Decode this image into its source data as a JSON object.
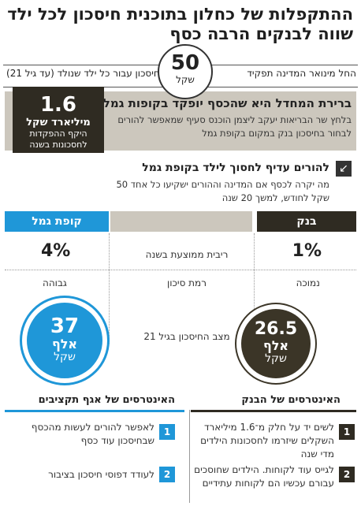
{
  "title": "ההתקפלות של כחלון בתוכנית חיסכון לכל ילד שווה לבנקים הרבה כסף",
  "subheader": {
    "right_text": "החל מינואר המדינה תפקיד",
    "left_text": "לחיסכון עבור כל ילד שנולד (עד גיל 21)",
    "amount": "50",
    "unit": "שקל"
  },
  "default_box": {
    "title": "ברירת המחדל היא שהכסף יופקד בקופות גמל",
    "text": "בלחץ שר הבריאות יעקב ליצמן הוכנס סעיף שמאפשר להורים לבחור בחיסכון בנק במקום בקופת גמל",
    "stat_value": "1.6",
    "stat_label1": "מיליארד שקל",
    "stat_label2": "היקף ההפקדות לחסכונות בשנה"
  },
  "question": {
    "arrow_icon": "arrow-down-left-icon",
    "title": "להורים עדיף לחסוך לילד בקופת גמל",
    "text": "מה יקרה לכסף אם המדינה וההורים ישקיעו כל אחד 50 שקל לחודש, למשך 20 שנה"
  },
  "comparison": {
    "bank_header": "בנק",
    "gemel_header": "קופת גמל",
    "interest_label": "ריבית ממוצעת בשנה",
    "bank_interest": "1%",
    "gemel_interest": "4%",
    "risk_label": "רמת סיכון",
    "bank_risk": "נמוכה",
    "gemel_risk": "גבוהה",
    "savings_label": "מצב החיסכון בגיל 21",
    "bank_savings": "26.5",
    "bank_savings_unit1": "אלף",
    "bank_savings_unit2": "שקל",
    "gemel_savings": "37",
    "gemel_savings_unit1": "אלף",
    "gemel_savings_unit2": "שקל"
  },
  "bank_interests": {
    "title": "האינטרסים של הבנק",
    "items": [
      {
        "num": "1",
        "text": "לשים יד על חלק מ־1.6 מיליארד השקלים שיזרמו לחסכונות הילדים מדי שנה"
      },
      {
        "num": "2",
        "text": "לגייס עוד לקוחות. הילדים שחוסכים עבורם עכשיו הם לקוחות עתידיים"
      }
    ]
  },
  "budget_interests": {
    "title": "האינטרסים של אגף תקציבים",
    "items": [
      {
        "num": "1",
        "text": "לאפשר להורים לעשות מהכסף שבחיסכון עוד כסף"
      },
      {
        "num": "2",
        "text": "לעודד דפוסי חיסכון בציבור"
      }
    ]
  },
  "colors": {
    "dark": "#2f2b22",
    "beige": "#ccc7bd",
    "blue": "#1f97d8"
  }
}
